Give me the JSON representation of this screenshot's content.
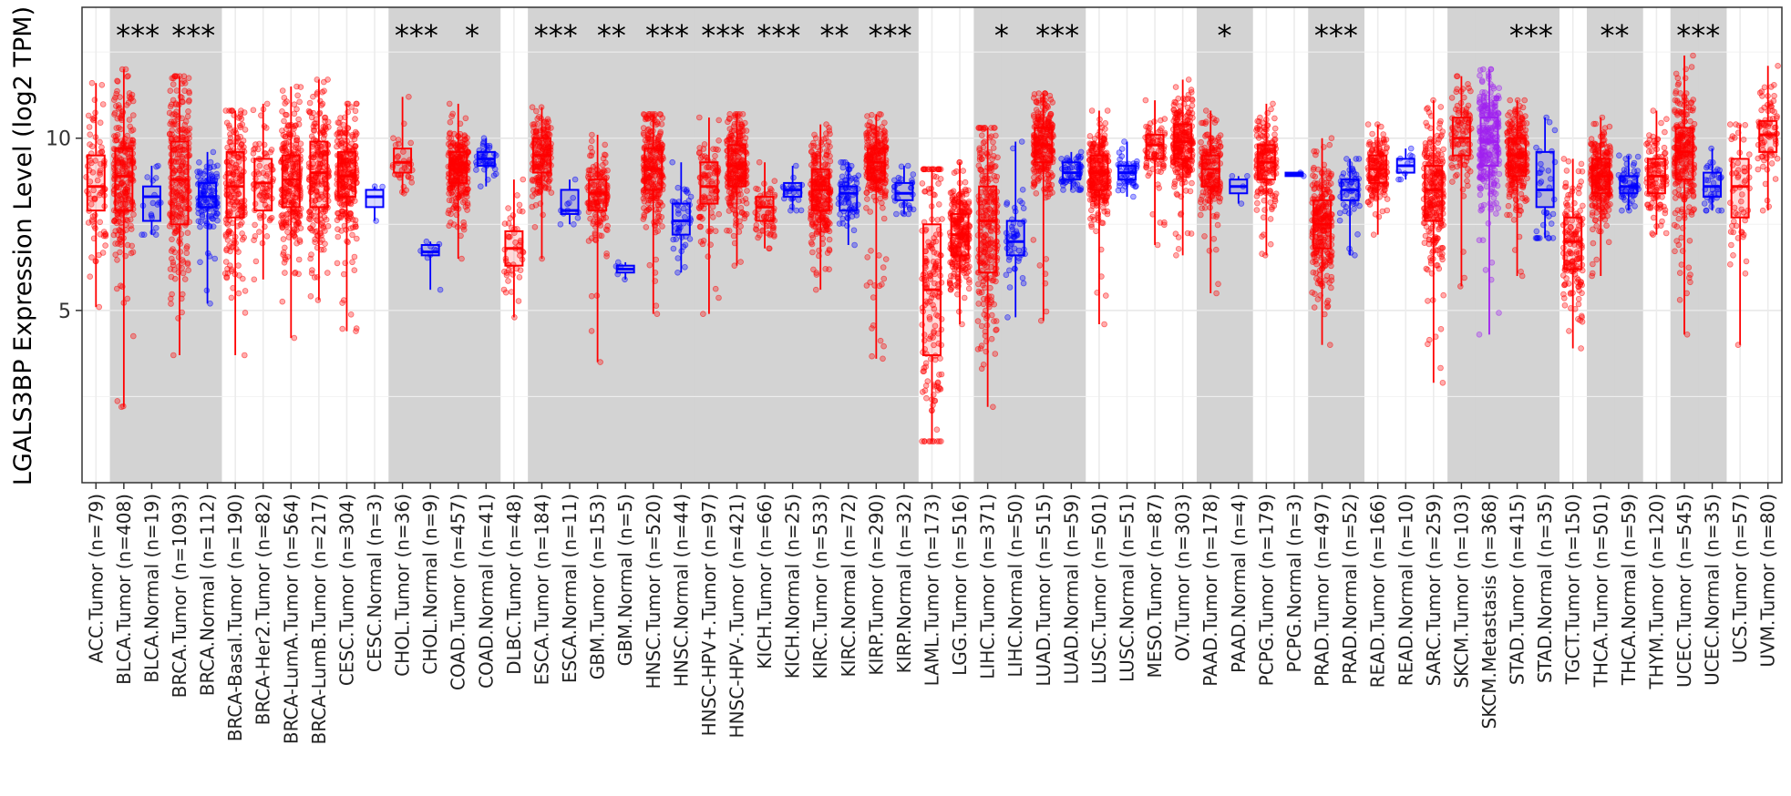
{
  "chart_data": {
    "type": "box",
    "title": "",
    "xlabel": "",
    "ylabel": "LGALS3BP Expression Level (log2 TPM)",
    "ylim": [
      0,
      13.8
    ],
    "yticks": [
      5,
      10
    ],
    "grid": true,
    "legend": "none",
    "colors": {
      "tumor": "#ff0000",
      "normal": "#0000ff",
      "metastasis": "#a020f0",
      "shade": "#d3d3d3",
      "panel_grid": "#ebebeb"
    },
    "categories": [
      {
        "label": "ACC.Tumor (n=79)",
        "kind": "tumor",
        "shade": false,
        "sig": "",
        "n": 79,
        "min": 5.1,
        "q1": 7.9,
        "median": 8.6,
        "q3": 9.5,
        "max": 11.6
      },
      {
        "label": "BLCA.Tumor (n=408)",
        "kind": "tumor",
        "shade": true,
        "sig": "***",
        "n": 408,
        "min": 2.2,
        "q1": 7.9,
        "median": 8.9,
        "q3": 9.7,
        "max": 12.0
      },
      {
        "label": "BLCA.Normal (n=19)",
        "kind": "normal",
        "shade": true,
        "sig": "",
        "n": 19,
        "min": 7.2,
        "q1": 7.6,
        "median": 8.3,
        "q3": 8.6,
        "max": 9.2
      },
      {
        "label": "BRCA.Tumor (n=1093)",
        "kind": "tumor",
        "shade": true,
        "sig": "***",
        "n": 1093,
        "min": 3.7,
        "q1": 7.5,
        "median": 8.8,
        "q3": 9.9,
        "max": 11.8
      },
      {
        "label": "BRCA.Normal (n=112)",
        "kind": "normal",
        "shade": true,
        "sig": "",
        "n": 112,
        "min": 5.2,
        "q1": 8.0,
        "median": 8.3,
        "q3": 8.7,
        "max": 9.6
      },
      {
        "label": "BRCA-Basal.Tumor (n=190)",
        "kind": "tumor",
        "shade": false,
        "sig": "",
        "n": 190,
        "min": 3.7,
        "q1": 7.7,
        "median": 8.6,
        "q3": 9.6,
        "max": 10.8
      },
      {
        "label": "BRCA-Her2.Tumor (n=82)",
        "kind": "tumor",
        "shade": false,
        "sig": "",
        "n": 82,
        "min": 5.9,
        "q1": 7.9,
        "median": 8.7,
        "q3": 9.4,
        "max": 11.0
      },
      {
        "label": "BRCA-LumA.Tumor (n=564)",
        "kind": "tumor",
        "shade": false,
        "sig": "",
        "n": 564,
        "min": 4.2,
        "q1": 8.0,
        "median": 8.8,
        "q3": 9.5,
        "max": 11.5
      },
      {
        "label": "BRCA-LumB.Tumor (n=217)",
        "kind": "tumor",
        "shade": false,
        "sig": "",
        "n": 217,
        "min": 5.3,
        "q1": 8.0,
        "median": 9.0,
        "q3": 9.9,
        "max": 11.7
      },
      {
        "label": "CESC.Tumor (n=304)",
        "kind": "tumor",
        "shade": false,
        "sig": "",
        "n": 304,
        "min": 4.4,
        "q1": 8.3,
        "median": 8.9,
        "q3": 9.6,
        "max": 11.0
      },
      {
        "label": "CESC.Normal (n=3)",
        "kind": "normal",
        "shade": false,
        "sig": "",
        "n": 3,
        "min": 7.6,
        "q1": 8.0,
        "median": 8.3,
        "q3": 8.5,
        "max": 8.6
      },
      {
        "label": "CHOL.Tumor (n=36)",
        "kind": "tumor",
        "shade": true,
        "sig": "***",
        "n": 36,
        "min": 8.4,
        "q1": 9.0,
        "median": 9.3,
        "q3": 9.7,
        "max": 11.2
      },
      {
        "label": "CHOL.Normal (n=9)",
        "kind": "normal",
        "shade": true,
        "sig": "",
        "n": 9,
        "min": 5.6,
        "q1": 6.6,
        "median": 6.7,
        "q3": 6.9,
        "max": 7.0
      },
      {
        "label": "COAD.Tumor (n=457)",
        "kind": "tumor",
        "shade": true,
        "sig": "*",
        "n": 457,
        "min": 6.5,
        "q1": 8.7,
        "median": 9.1,
        "q3": 9.6,
        "max": 11.0
      },
      {
        "label": "COAD.Normal (n=41)",
        "kind": "normal",
        "shade": true,
        "sig": "",
        "n": 41,
        "min": 8.6,
        "q1": 9.2,
        "median": 9.4,
        "q3": 9.6,
        "max": 10.0
      },
      {
        "label": "DLBC.Tumor (n=48)",
        "kind": "tumor",
        "shade": false,
        "sig": "",
        "n": 48,
        "min": 4.8,
        "q1": 6.3,
        "median": 6.8,
        "q3": 7.3,
        "max": 8.8
      },
      {
        "label": "ESCA.Tumor (n=184)",
        "kind": "tumor",
        "shade": true,
        "sig": "***",
        "n": 184,
        "min": 6.5,
        "q1": 9.0,
        "median": 9.5,
        "q3": 10.0,
        "max": 10.9
      },
      {
        "label": "ESCA.Normal (n=11)",
        "kind": "normal",
        "shade": true,
        "sig": "",
        "n": 11,
        "min": 7.5,
        "q1": 7.8,
        "median": 7.9,
        "q3": 8.5,
        "max": 8.8
      },
      {
        "label": "GBM.Tumor (n=153)",
        "kind": "tumor",
        "shade": true,
        "sig": "**",
        "n": 153,
        "min": 3.5,
        "q1": 7.9,
        "median": 8.4,
        "q3": 8.8,
        "max": 10.1
      },
      {
        "label": "GBM.Normal (n=5)",
        "kind": "normal",
        "shade": true,
        "sig": "",
        "n": 5,
        "min": 5.9,
        "q1": 6.1,
        "median": 6.2,
        "q3": 6.3,
        "max": 6.4
      },
      {
        "label": "HNSC.Tumor (n=520)",
        "kind": "tumor",
        "shade": true,
        "sig": "***",
        "n": 520,
        "min": 4.9,
        "q1": 8.5,
        "median": 9.1,
        "q3": 9.7,
        "max": 10.7
      },
      {
        "label": "HNSC.Normal (n=44)",
        "kind": "normal",
        "shade": true,
        "sig": "",
        "n": 44,
        "min": 6.1,
        "q1": 7.2,
        "median": 7.6,
        "q3": 8.1,
        "max": 9.3
      },
      {
        "label": "HNSC-HPV+.Tumor (n=97)",
        "kind": "tumor",
        "shade": true,
        "sig": "***",
        "n": 97,
        "min": 4.9,
        "q1": 8.1,
        "median": 8.6,
        "q3": 9.3,
        "max": 10.6
      },
      {
        "label": "HNSC-HPV-.Tumor (n=421)",
        "kind": "tumor",
        "shade": true,
        "sig": "",
        "n": 421,
        "min": 6.3,
        "q1": 8.6,
        "median": 9.2,
        "q3": 9.8,
        "max": 10.7
      },
      {
        "label": "KICH.Tumor (n=66)",
        "kind": "tumor",
        "shade": true,
        "sig": "***",
        "n": 66,
        "min": 6.8,
        "q1": 7.6,
        "median": 8.0,
        "q3": 8.3,
        "max": 9.3
      },
      {
        "label": "KICH.Normal (n=25)",
        "kind": "normal",
        "shade": true,
        "sig": "",
        "n": 25,
        "min": 7.9,
        "q1": 8.3,
        "median": 8.5,
        "q3": 8.7,
        "max": 9.2
      },
      {
        "label": "KIRC.Tumor (n=533)",
        "kind": "tumor",
        "shade": true,
        "sig": "**",
        "n": 533,
        "min": 5.6,
        "q1": 7.9,
        "median": 8.5,
        "q3": 9.1,
        "max": 10.4
      },
      {
        "label": "KIRC.Normal (n=72)",
        "kind": "normal",
        "shade": true,
        "sig": "",
        "n": 72,
        "min": 6.9,
        "q1": 7.9,
        "median": 8.4,
        "q3": 8.6,
        "max": 9.3
      },
      {
        "label": "KIRP.Tumor (n=290)",
        "kind": "tumor",
        "shade": true,
        "sig": "***",
        "n": 290,
        "min": 3.6,
        "q1": 8.8,
        "median": 9.3,
        "q3": 9.7,
        "max": 10.7
      },
      {
        "label": "KIRP.Normal (n=32)",
        "kind": "normal",
        "shade": true,
        "sig": "",
        "n": 32,
        "min": 7.8,
        "q1": 8.2,
        "median": 8.4,
        "q3": 8.7,
        "max": 9.2
      },
      {
        "label": "LAML.Tumor (n=173)",
        "kind": "tumor",
        "shade": false,
        "sig": "",
        "n": 173,
        "min": 1.2,
        "q1": 3.7,
        "median": 5.6,
        "q3": 7.5,
        "max": 9.1
      },
      {
        "label": "LGG.Tumor (n=516)",
        "kind": "tumor",
        "shade": false,
        "sig": "",
        "n": 516,
        "min": 4.6,
        "q1": 6.6,
        "median": 7.2,
        "q3": 7.8,
        "max": 9.3
      },
      {
        "label": "LIHC.Tumor (n=371)",
        "kind": "tumor",
        "shade": true,
        "sig": "*",
        "n": 371,
        "min": 2.2,
        "q1": 6.1,
        "median": 7.6,
        "q3": 8.6,
        "max": 10.3
      },
      {
        "label": "LIHC.Normal (n=50)",
        "kind": "normal",
        "shade": true,
        "sig": "",
        "n": 50,
        "min": 4.8,
        "q1": 6.6,
        "median": 7.0,
        "q3": 7.6,
        "max": 9.9
      },
      {
        "label": "LUAD.Tumor (n=515)",
        "kind": "tumor",
        "shade": true,
        "sig": "***",
        "n": 515,
        "min": 4.7,
        "q1": 9.3,
        "median": 9.8,
        "q3": 10.3,
        "max": 11.3
      },
      {
        "label": "LUAD.Normal (n=59)",
        "kind": "normal",
        "shade": true,
        "sig": "",
        "n": 59,
        "min": 8.5,
        "q1": 8.8,
        "median": 9.0,
        "q3": 9.3,
        "max": 9.6
      },
      {
        "label": "LUSC.Tumor (n=501)",
        "kind": "tumor",
        "shade": false,
        "sig": "",
        "n": 501,
        "min": 4.6,
        "q1": 8.5,
        "median": 9.0,
        "q3": 9.5,
        "max": 10.8
      },
      {
        "label": "LUSC.Normal (n=51)",
        "kind": "normal",
        "shade": false,
        "sig": "",
        "n": 51,
        "min": 8.3,
        "q1": 8.8,
        "median": 9.0,
        "q3": 9.2,
        "max": 9.9
      },
      {
        "label": "MESO.Tumor (n=87)",
        "kind": "tumor",
        "shade": false,
        "sig": "",
        "n": 87,
        "min": 6.9,
        "q1": 9.4,
        "median": 9.8,
        "q3": 10.1,
        "max": 11.1
      },
      {
        "label": "OV.Tumor (n=303)",
        "kind": "tumor",
        "shade": false,
        "sig": "",
        "n": 303,
        "min": 6.6,
        "q1": 9.4,
        "median": 9.9,
        "q3": 10.4,
        "max": 11.7
      },
      {
        "label": "PAAD.Tumor (n=178)",
        "kind": "tumor",
        "shade": true,
        "sig": "*",
        "n": 178,
        "min": 5.5,
        "q1": 8.6,
        "median": 9.1,
        "q3": 9.5,
        "max": 10.8
      },
      {
        "label": "PAAD.Normal (n=4)",
        "kind": "normal",
        "shade": true,
        "sig": "",
        "n": 4,
        "min": 8.1,
        "q1": 8.4,
        "median": 8.6,
        "q3": 8.8,
        "max": 8.9
      },
      {
        "label": "PCPG.Tumor (n=179)",
        "kind": "tumor",
        "shade": false,
        "sig": "",
        "n": 179,
        "min": 6.6,
        "q1": 8.8,
        "median": 9.3,
        "q3": 9.8,
        "max": 11.0
      },
      {
        "label": "PCPG.Normal (n=3)",
        "kind": "normal",
        "shade": false,
        "sig": "",
        "n": 3,
        "min": 8.9,
        "q1": 8.9,
        "median": 8.95,
        "q3": 9.0,
        "max": 9.0
      },
      {
        "label": "PRAD.Tumor (n=497)",
        "kind": "tumor",
        "shade": true,
        "sig": "***",
        "n": 497,
        "min": 4.0,
        "q1": 6.8,
        "median": 7.5,
        "q3": 8.2,
        "max": 10.0
      },
      {
        "label": "PRAD.Normal (n=52)",
        "kind": "normal",
        "shade": true,
        "sig": "",
        "n": 52,
        "min": 6.6,
        "q1": 8.2,
        "median": 8.5,
        "q3": 8.8,
        "max": 9.4
      },
      {
        "label": "READ.Tumor (n=166)",
        "kind": "tumor",
        "shade": false,
        "sig": "",
        "n": 166,
        "min": 7.2,
        "q1": 8.7,
        "median": 9.1,
        "q3": 9.5,
        "max": 10.4
      },
      {
        "label": "READ.Normal (n=10)",
        "kind": "normal",
        "shade": false,
        "sig": "",
        "n": 10,
        "min": 8.8,
        "q1": 9.0,
        "median": 9.2,
        "q3": 9.4,
        "max": 9.7
      },
      {
        "label": "SARC.Tumor (n=259)",
        "kind": "tumor",
        "shade": false,
        "sig": "",
        "n": 259,
        "min": 2.9,
        "q1": 7.6,
        "median": 8.5,
        "q3": 9.2,
        "max": 11.1
      },
      {
        "label": "SKCM.Tumor (n=103)",
        "kind": "tumor",
        "shade": true,
        "sig": "",
        "n": 103,
        "min": 5.7,
        "q1": 9.5,
        "median": 10.0,
        "q3": 10.6,
        "max": 11.8
      },
      {
        "label": "SKCM.Metastasis (n=368)",
        "kind": "metastasis",
        "shade": true,
        "sig": "",
        "n": 368,
        "min": 4.3,
        "q1": 9.2,
        "median": 9.9,
        "q3": 10.6,
        "max": 12.0
      },
      {
        "label": "STAD.Tumor (n=415)",
        "kind": "tumor",
        "shade": true,
        "sig": "***",
        "n": 415,
        "min": 6.0,
        "q1": 8.9,
        "median": 9.5,
        "q3": 10.0,
        "max": 11.1
      },
      {
        "label": "STAD.Normal (n=35)",
        "kind": "normal",
        "shade": true,
        "sig": "",
        "n": 35,
        "min": 7.1,
        "q1": 8.0,
        "median": 8.5,
        "q3": 9.6,
        "max": 10.6
      },
      {
        "label": "TGCT.Tumor (n=150)",
        "kind": "tumor",
        "shade": false,
        "sig": "",
        "n": 150,
        "min": 3.9,
        "q1": 6.2,
        "median": 7.0,
        "q3": 7.7,
        "max": 9.4
      },
      {
        "label": "THCA.Tumor (n=501)",
        "kind": "tumor",
        "shade": true,
        "sig": "**",
        "n": 501,
        "min": 6.0,
        "q1": 8.4,
        "median": 8.9,
        "q3": 9.4,
        "max": 10.6
      },
      {
        "label": "THCA.Normal (n=59)",
        "kind": "normal",
        "shade": true,
        "sig": "",
        "n": 59,
        "min": 7.9,
        "q1": 8.4,
        "median": 8.6,
        "q3": 8.9,
        "max": 9.5
      },
      {
        "label": "THYM.Tumor (n=120)",
        "kind": "tumor",
        "shade": false,
        "sig": "",
        "n": 120,
        "min": 7.2,
        "q1": 8.4,
        "median": 8.9,
        "q3": 9.4,
        "max": 10.8
      },
      {
        "label": "UCEC.Tumor (n=545)",
        "kind": "tumor",
        "shade": true,
        "sig": "***",
        "n": 545,
        "min": 4.3,
        "q1": 8.8,
        "median": 9.6,
        "q3": 10.3,
        "max": 12.4
      },
      {
        "label": "UCEC.Normal (n=35)",
        "kind": "normal",
        "shade": true,
        "sig": "",
        "n": 35,
        "min": 7.9,
        "q1": 8.3,
        "median": 8.6,
        "q3": 9.0,
        "max": 9.7
      },
      {
        "label": "UCS.Tumor (n=57)",
        "kind": "tumor",
        "shade": false,
        "sig": "",
        "n": 57,
        "min": 4.0,
        "q1": 7.7,
        "median": 8.6,
        "q3": 9.4,
        "max": 10.4
      },
      {
        "label": "UVM.Tumor (n=80)",
        "kind": "tumor",
        "shade": false,
        "sig": "",
        "n": 80,
        "min": 7.9,
        "q1": 9.6,
        "median": 10.1,
        "q3": 10.5,
        "max": 12.1
      }
    ]
  }
}
